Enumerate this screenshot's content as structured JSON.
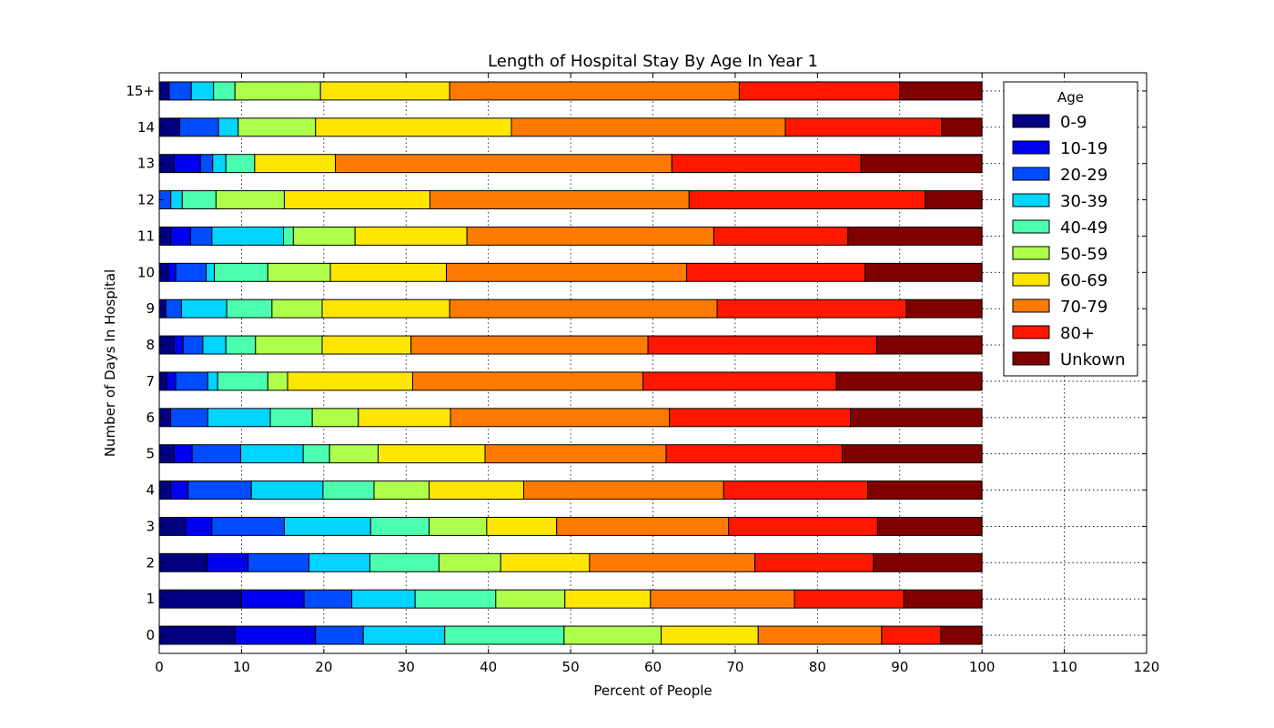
{
  "chart_data": {
    "type": "bar",
    "orientation": "horizontal",
    "stacked": true,
    "title": "Length of Hospital Stay By Age In Year 1",
    "xlabel": "Percent of People",
    "ylabel": "Number of Days In Hospital",
    "xlim": [
      0,
      120
    ],
    "xticks": [
      0,
      10,
      20,
      30,
      40,
      50,
      60,
      70,
      80,
      90,
      100,
      110,
      120
    ],
    "grid": true,
    "legend": {
      "title": "Age",
      "position": "top-right"
    },
    "categories": [
      "0",
      "1",
      "2",
      "3",
      "4",
      "5",
      "6",
      "7",
      "8",
      "9",
      "10",
      "11",
      "12",
      "13",
      "14",
      "15+"
    ],
    "series": [
      {
        "name": "0-9",
        "color": "#000080",
        "values": [
          9.2,
          10.0,
          5.8,
          3.2,
          1.4,
          1.8,
          1.4,
          0.9,
          1.8,
          0.8,
          1.1,
          1.4,
          0.0,
          1.8,
          2.5,
          1.2
        ]
      },
      {
        "name": "10-19",
        "color": "#0000f1",
        "values": [
          9.8,
          7.6,
          5.0,
          3.2,
          2.1,
          2.2,
          0.0,
          1.1,
          1.1,
          0.0,
          0.9,
          2.4,
          0.0,
          3.2,
          0.0,
          0.0
        ]
      },
      {
        "name": "20-29",
        "color": "#004cff",
        "values": [
          5.8,
          5.8,
          7.4,
          8.8,
          7.7,
          5.9,
          4.5,
          3.9,
          2.4,
          1.9,
          3.7,
          2.6,
          1.4,
          1.5,
          4.7,
          2.7
        ]
      },
      {
        "name": "30-39",
        "color": "#00d4ff",
        "values": [
          9.9,
          7.7,
          7.4,
          10.5,
          8.7,
          7.6,
          7.6,
          1.2,
          2.8,
          5.5,
          1.0,
          8.7,
          1.4,
          1.6,
          2.4,
          2.7
        ]
      },
      {
        "name": "40-49",
        "color": "#4affad",
        "values": [
          14.5,
          9.8,
          8.4,
          7.1,
          6.2,
          3.2,
          5.1,
          6.1,
          3.6,
          5.5,
          6.5,
          1.2,
          4.1,
          3.5,
          0.0,
          2.6
        ]
      },
      {
        "name": "50-59",
        "color": "#adff4a",
        "values": [
          11.8,
          8.4,
          7.5,
          7.0,
          6.7,
          5.9,
          5.6,
          2.4,
          8.1,
          6.1,
          7.6,
          7.5,
          8.3,
          0.0,
          9.4,
          10.4
        ]
      },
      {
        "name": "60-69",
        "color": "#ffe600",
        "values": [
          11.8,
          10.4,
          10.8,
          8.5,
          11.5,
          13.0,
          11.2,
          15.2,
          10.8,
          15.5,
          14.1,
          13.6,
          17.7,
          9.8,
          23.8,
          15.7
        ]
      },
      {
        "name": "70-79",
        "color": "#ff7a00",
        "values": [
          15.0,
          17.5,
          20.1,
          20.9,
          24.3,
          22.0,
          26.6,
          28.0,
          28.8,
          32.5,
          29.2,
          30.0,
          31.5,
          40.9,
          33.3,
          35.2
        ]
      },
      {
        "name": "80+",
        "color": "#ff1700",
        "values": [
          7.2,
          13.3,
          14.4,
          18.1,
          17.5,
          21.4,
          22.0,
          23.5,
          27.8,
          23.0,
          21.7,
          16.3,
          28.7,
          23.0,
          19.0,
          19.5
        ]
      },
      {
        "name": "Unkown",
        "color": "#800000",
        "values": [
          5.0,
          9.5,
          13.2,
          12.7,
          13.9,
          17.0,
          16.0,
          17.7,
          12.8,
          9.2,
          14.2,
          16.3,
          6.9,
          14.7,
          4.9,
          10.0
        ]
      }
    ]
  }
}
